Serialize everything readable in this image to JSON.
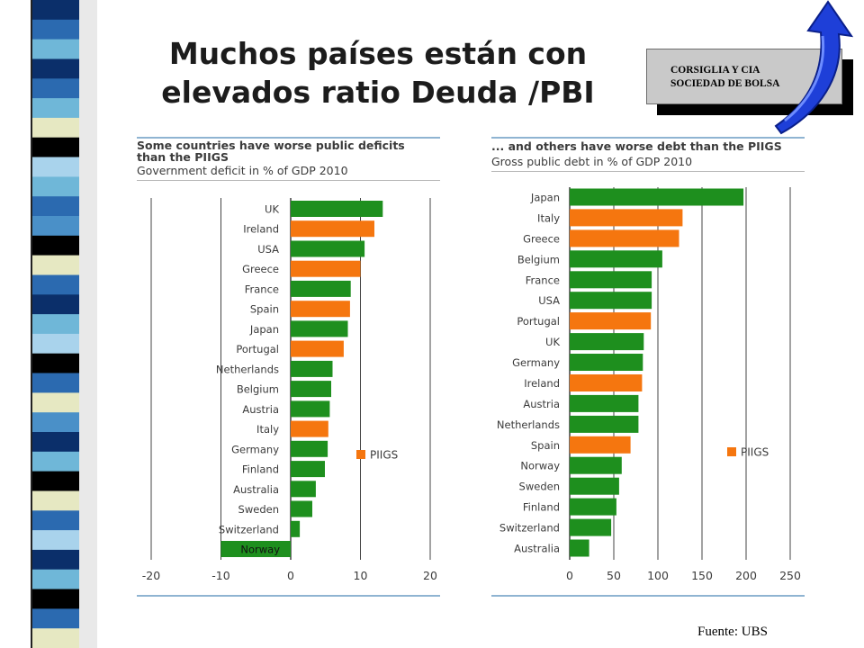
{
  "slide": {
    "title_line1": "Muchos países están con",
    "title_line2": "elevados ratio Deuda /PBI",
    "source": "Fuente: UBS"
  },
  "logo": {
    "line1": "CORSIGLIA Y CIA",
    "line2": "SOCIEDAD DE BOLSA"
  },
  "colors": {
    "green": "#1e8f1e",
    "orange": "#f5760f",
    "title_text": "#1c1c1c",
    "chart_text": "#3b3b3b",
    "rule": "#8fb4d2",
    "arrow": "#1e3fd8",
    "strip": [
      "#0b2f6a",
      "#2b6ab0",
      "#6fb7d8",
      "#e6e8c2",
      "#000000",
      "#a9d3ec",
      "#4a90c8"
    ]
  },
  "chart_data": [
    {
      "type": "bar",
      "orientation": "horizontal",
      "title": "Some countries have worse public deficits than the PIIGS",
      "title_line1": "Some countries have worse public deficits",
      "title_line2": "than the PIIGS",
      "subtitle": "Government deficit in % of GDP 2010",
      "legend": {
        "label": "PIIGS",
        "placement": "right"
      },
      "xlim": [
        -20,
        20
      ],
      "xticks": [
        -20,
        -10,
        0,
        10,
        20
      ],
      "grid": true,
      "categories": [
        "UK",
        "Ireland",
        "USA",
        "Greece",
        "France",
        "Spain",
        "Japan",
        "Portugal",
        "Netherlands",
        "Belgium",
        "Austria",
        "Italy",
        "Germany",
        "Finland",
        "Australia",
        "Sweden",
        "Switzerland",
        "Norway"
      ],
      "values": [
        13.2,
        12.0,
        10.6,
        10.0,
        8.6,
        8.5,
        8.2,
        7.6,
        6.0,
        5.8,
        5.6,
        5.4,
        5.3,
        4.9,
        3.6,
        3.1,
        1.3,
        -10.0
      ],
      "piigs": [
        false,
        true,
        false,
        true,
        false,
        true,
        false,
        true,
        false,
        false,
        false,
        true,
        false,
        false,
        false,
        false,
        false,
        false
      ]
    },
    {
      "type": "bar",
      "orientation": "horizontal",
      "title": "... and others have worse debt than the PIIGS",
      "subtitle": "Gross public debt in % of GDP 2010",
      "legend": {
        "label": "PIIGS",
        "placement": "right"
      },
      "xlim": [
        0,
        250
      ],
      "xticks": [
        0,
        50,
        100,
        150,
        200,
        250
      ],
      "grid": true,
      "categories": [
        "Japan",
        "Italy",
        "Greece",
        "Belgium",
        "France",
        "USA",
        "Portugal",
        "UK",
        "Germany",
        "Ireland",
        "Austria",
        "Netherlands",
        "Spain",
        "Norway",
        "Sweden",
        "Finland",
        "Switzerland",
        "Australia"
      ],
      "values": [
        197,
        128,
        124,
        105,
        93,
        93,
        92,
        84,
        83,
        82,
        78,
        78,
        69,
        59,
        56,
        53,
        47,
        22
      ],
      "piigs": [
        false,
        true,
        true,
        false,
        false,
        false,
        true,
        false,
        false,
        true,
        false,
        false,
        true,
        false,
        false,
        false,
        false,
        false
      ]
    }
  ]
}
